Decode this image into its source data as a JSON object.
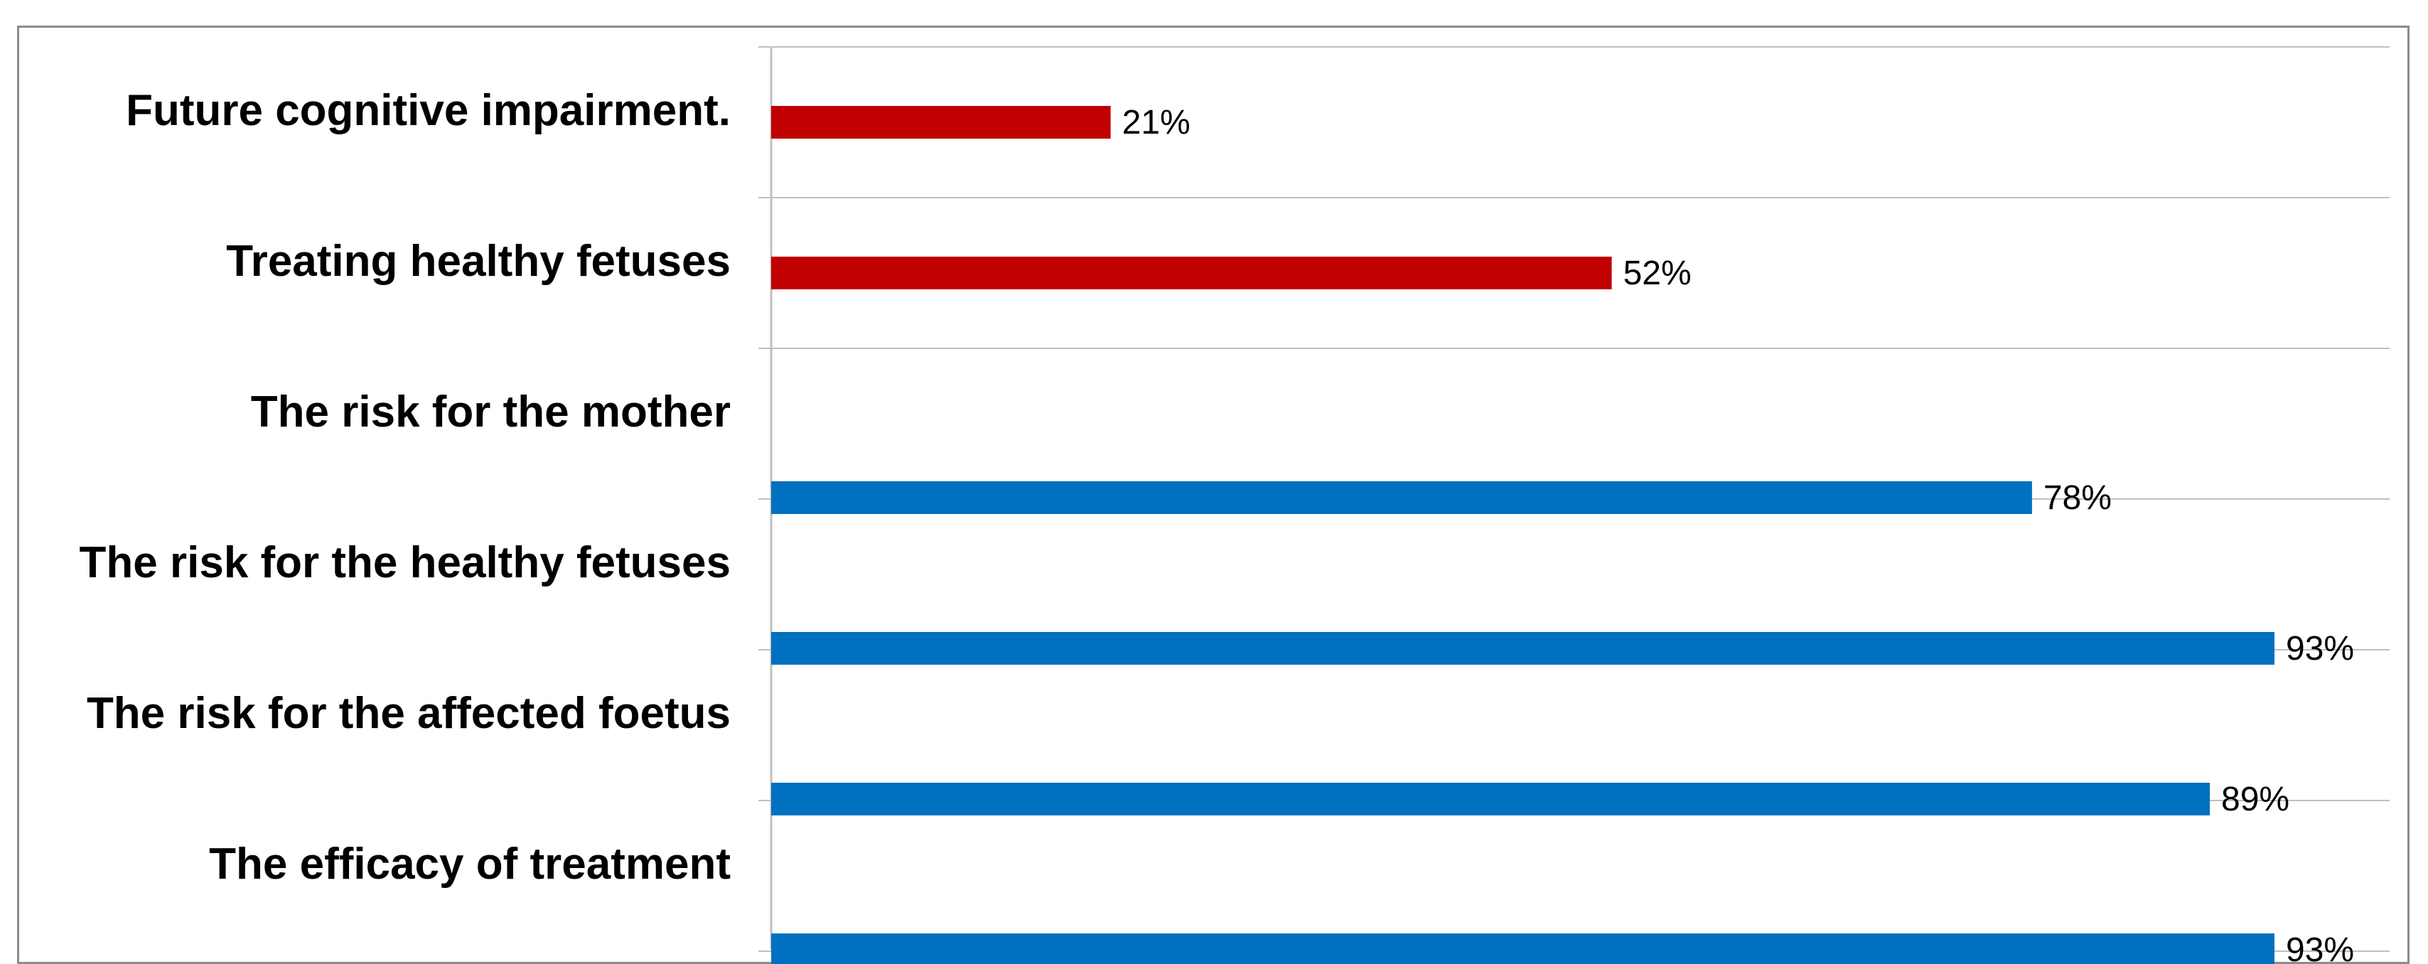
{
  "chart_data": {
    "type": "bar",
    "orientation": "horizontal",
    "categories": [
      "Future cognitive impairment.",
      "Treating healthy fetuses",
      "The risk for the mother",
      "The risk for the healthy fetuses",
      "The risk for the affected foetus",
      "The efficacy of treatment"
    ],
    "series": [
      {
        "values": [
          21,
          52,
          null,
          null,
          null,
          null
        ],
        "color": "#C00000"
      },
      {
        "values": [
          null,
          null,
          78,
          93,
          89,
          93
        ],
        "color": "#0070C0"
      }
    ],
    "data_labels": [
      "21%",
      "52%",
      "78%",
      "93%",
      "89%",
      "93%"
    ],
    "value_unit": "%",
    "xlim": [
      0,
      100
    ],
    "gridlines": "horizontal category separators",
    "legend": "none"
  }
}
